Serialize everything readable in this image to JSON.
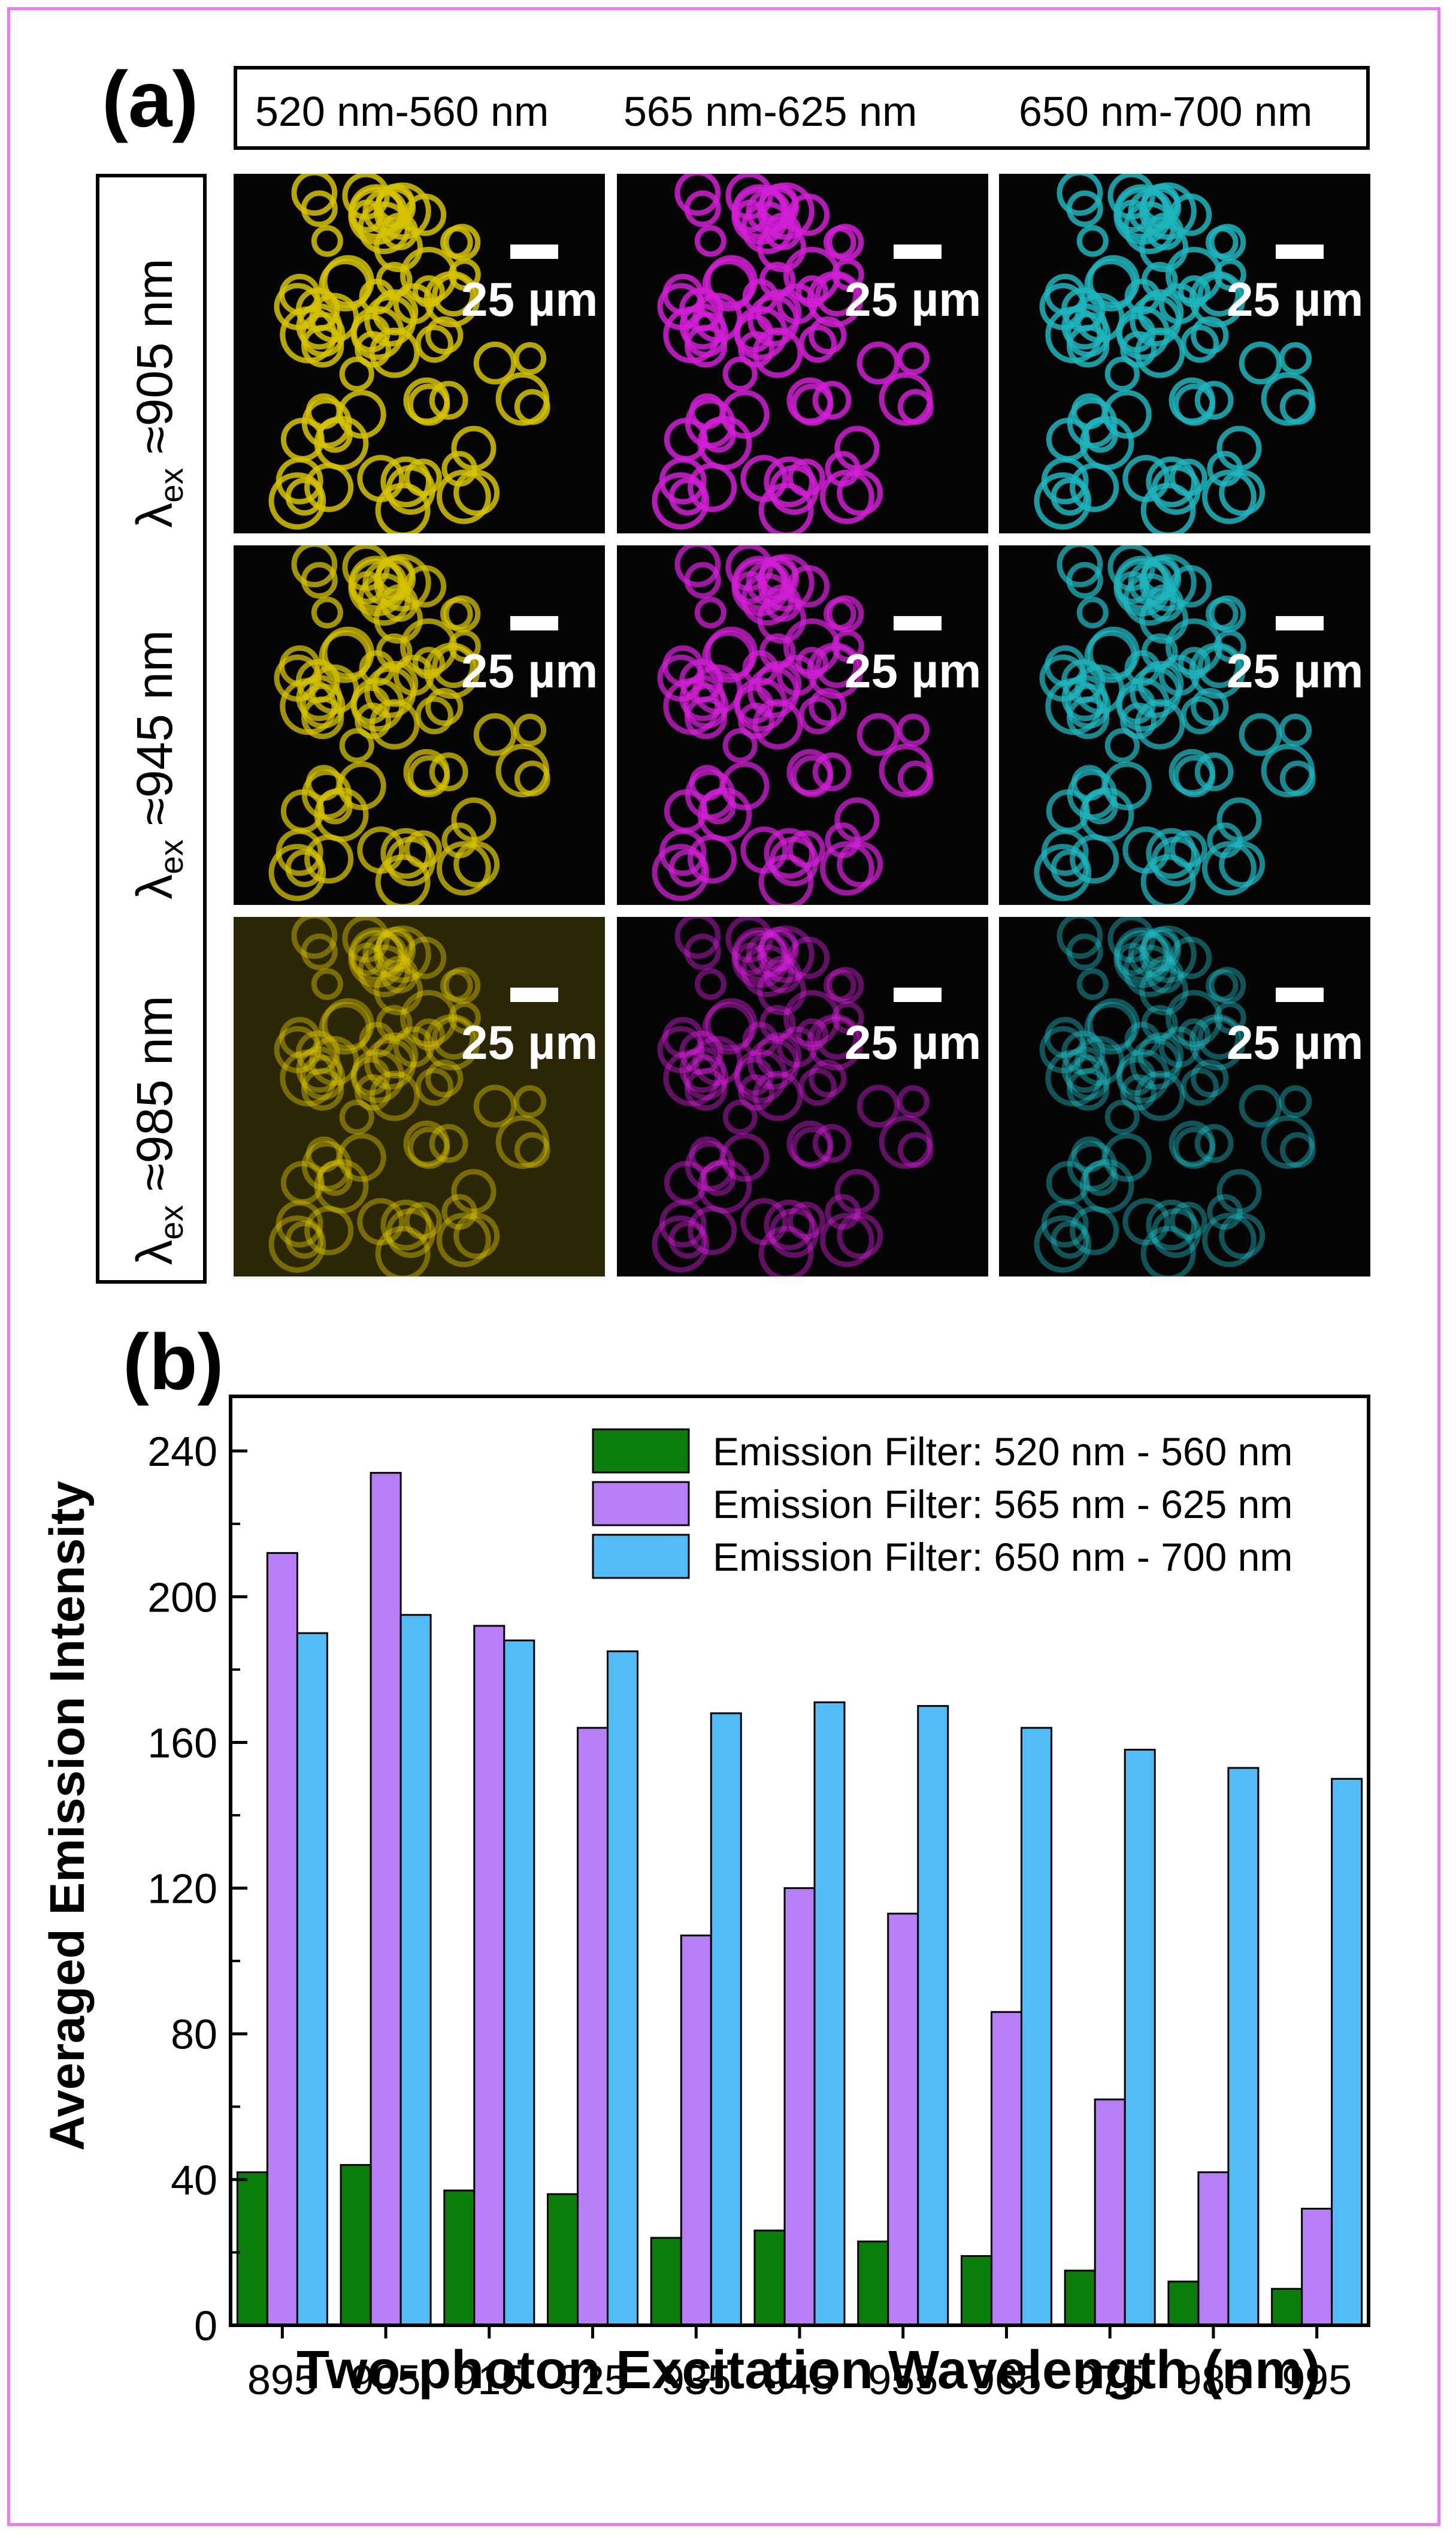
{
  "panel_a": {
    "label": "(a)",
    "filters": [
      "520 nm-560 nm",
      "565 nm-625 nm",
      "650 nm-700 nm"
    ],
    "excitation_rows": [
      {
        "symbol": "λ",
        "sub": "ex",
        "text": " ≈905 nm"
      },
      {
        "symbol": "λ",
        "sub": "ex",
        "text": " ≈945 nm"
      },
      {
        "symbol": "λ",
        "sub": "ex",
        "text": " ≈985 nm"
      }
    ],
    "scale_bar_label": "25 µm",
    "channel_colors": [
      "#d6c300",
      "#d21fd6",
      "#1fb5bd"
    ]
  },
  "chart_data": {
    "panel_label": "(b)",
    "type": "bar",
    "xlabel": "Two-photon Excitation Wavelength (nm)",
    "ylabel": "Averaged Emission Intensity",
    "categories": [
      "895",
      "905",
      "915",
      "925",
      "935",
      "945",
      "955",
      "965",
      "975",
      "985",
      "995"
    ],
    "ylim": [
      0,
      255
    ],
    "yticks": [
      0,
      40,
      80,
      120,
      160,
      200,
      240
    ],
    "legend_position": "top-right",
    "series": [
      {
        "name": "Emission Filter: 520 nm - 560 nm",
        "color": "#0b7d0b",
        "values": [
          42,
          44,
          37,
          36,
          24,
          26,
          23,
          19,
          15,
          12,
          10
        ]
      },
      {
        "name": "Emission Filter: 565 nm - 625 nm",
        "color": "#b77ef7",
        "values": [
          212,
          234,
          192,
          164,
          107,
          120,
          113,
          86,
          62,
          42,
          32
        ]
      },
      {
        "name": "Emission Filter: 650 nm - 700 nm",
        "color": "#52bcf7",
        "values": [
          190,
          195,
          188,
          185,
          168,
          171,
          170,
          164,
          158,
          153,
          150
        ]
      }
    ]
  }
}
